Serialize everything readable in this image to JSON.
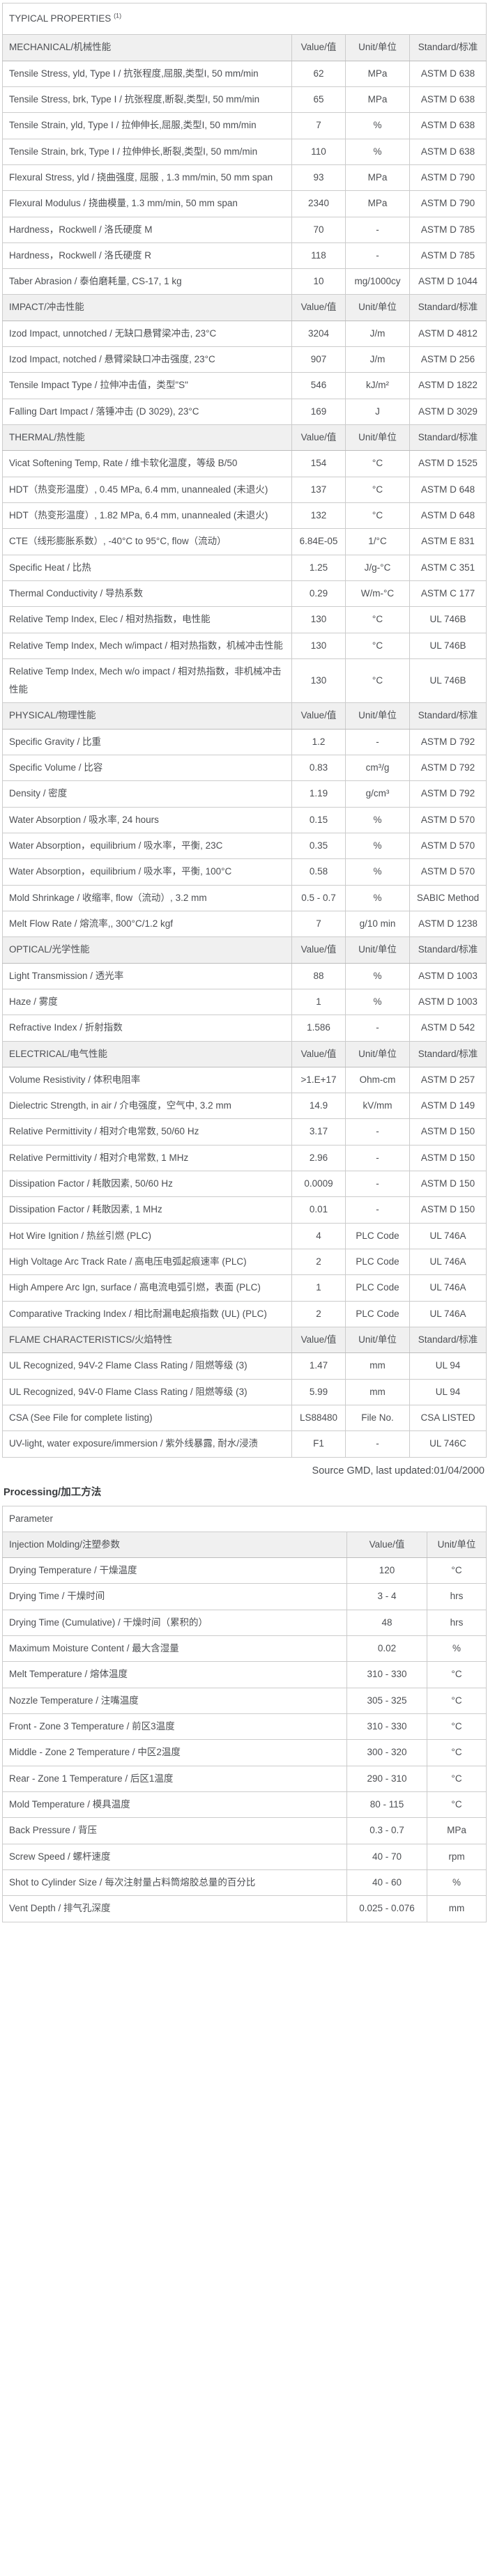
{
  "page": {
    "title": "TYPICAL PROPERTIES",
    "title_sup": "(1)",
    "source_note": "Source GMD, last updated:01/04/2000",
    "processing_heading": "Processing/加工方法"
  },
  "column_labels": {
    "value": "Value/值",
    "unit": "Unit/单位",
    "standard": "Standard/标准"
  },
  "properties_table": {
    "sections": [
      {
        "name": "MECHANICAL/机械性能",
        "rows": [
          {
            "property": "Tensile Stress, yld, Type I / 抗张程度,屈服,类型I, 50 mm/min",
            "value": "62",
            "unit": "MPa",
            "standard": "ASTM D 638"
          },
          {
            "property": "Tensile Stress, brk, Type I / 抗张程度,断裂,类型I, 50 mm/min",
            "value": "65",
            "unit": "MPa",
            "standard": "ASTM D 638"
          },
          {
            "property": "Tensile Strain, yld, Type I / 拉伸伸长,屈服,类型I, 50 mm/min",
            "value": "7",
            "unit": "%",
            "standard": "ASTM D 638"
          },
          {
            "property": "Tensile Strain, brk, Type I / 拉伸伸长,断裂,类型I, 50 mm/min",
            "value": "110",
            "unit": "%",
            "standard": "ASTM D 638"
          },
          {
            "property": "Flexural Stress, yld / 挠曲强度, 屈服 , 1.3 mm/min, 50 mm span",
            "value": "93",
            "unit": "MPa",
            "standard": "ASTM D 790"
          },
          {
            "property": "Flexural Modulus / 挠曲模量, 1.3 mm/min, 50 mm span",
            "value": "2340",
            "unit": "MPa",
            "standard": "ASTM D 790"
          },
          {
            "property": "Hardness，Rockwell / 洛氏硬度 M",
            "value": "70",
            "unit": "-",
            "standard": "ASTM D 785"
          },
          {
            "property": "Hardness，Rockwell / 洛氏硬度 R",
            "value": "118",
            "unit": "-",
            "standard": "ASTM D 785"
          },
          {
            "property": "Taber Abrasion / 泰伯磨耗量, CS-17, 1 kg",
            "value": "10",
            "unit": "mg/1000cy",
            "standard": "ASTM D 1044"
          }
        ]
      },
      {
        "name": "IMPACT/冲击性能",
        "rows": [
          {
            "property": "Izod Impact, unnotched / 无缺口悬臂梁冲击, 23°C",
            "value": "3204",
            "unit": "J/m",
            "standard": "ASTM D 4812"
          },
          {
            "property": "Izod Impact, notched / 悬臂梁缺口冲击强度, 23°C",
            "value": "907",
            "unit": "J/m",
            "standard": "ASTM D 256"
          },
          {
            "property": "Tensile Impact Type / 拉伸冲击值，类型\"S\"",
            "value": "546",
            "unit": "kJ/m²",
            "standard": "ASTM D 1822"
          },
          {
            "property": "Falling Dart Impact / 落锤冲击 (D 3029), 23°C",
            "value": "169",
            "unit": "J",
            "standard": "ASTM D 3029"
          }
        ]
      },
      {
        "name": "THERMAL/热性能",
        "rows": [
          {
            "property": "Vicat Softening Temp, Rate / 维卡软化温度，等级 B/50",
            "value": "154",
            "unit": "°C",
            "standard": "ASTM D 1525"
          },
          {
            "property": "HDT（热变形温度）, 0.45 MPa, 6.4 mm, unannealed (未退火)",
            "value": "137",
            "unit": "°C",
            "standard": "ASTM D 648"
          },
          {
            "property": "HDT（热变形温度）, 1.82 MPa, 6.4 mm, unannealed (未退火)",
            "value": "132",
            "unit": "°C",
            "standard": "ASTM D 648"
          },
          {
            "property": "CTE（线形膨胀系数）, -40°C to 95°C, flow（流动）",
            "value": "6.84E-05",
            "unit": "1/°C",
            "standard": "ASTM E 831"
          },
          {
            "property": "Specific Heat / 比热",
            "value": "1.25",
            "unit": "J/g-°C",
            "standard": "ASTM C 351"
          },
          {
            "property": "Thermal Conductivity / 导热系数",
            "value": "0.29",
            "unit": "W/m-°C",
            "standard": "ASTM C 177"
          },
          {
            "property": "Relative Temp Index, Elec / 相对热指数，电性能",
            "value": "130",
            "unit": "°C",
            "standard": "UL 746B"
          },
          {
            "property": "Relative Temp Index, Mech w/impact / 相对热指数，机械冲击性能",
            "value": "130",
            "unit": "°C",
            "standard": "UL 746B"
          },
          {
            "property": "Relative Temp Index, Mech w/o impact / 相对热指数，非机械冲击性能",
            "value": "130",
            "unit": "°C",
            "standard": "UL 746B"
          }
        ]
      },
      {
        "name": "PHYSICAL/物理性能",
        "rows": [
          {
            "property": "Specific Gravity / 比重",
            "value": "1.2",
            "unit": "-",
            "standard": "ASTM D 792"
          },
          {
            "property": "Specific Volume / 比容",
            "value": "0.83",
            "unit": "cm³/g",
            "standard": "ASTM D 792"
          },
          {
            "property": "Density / 密度",
            "value": "1.19",
            "unit": "g/cm³",
            "standard": "ASTM D 792"
          },
          {
            "property": "Water Absorption / 吸水率, 24 hours",
            "value": "0.15",
            "unit": "%",
            "standard": "ASTM D 570"
          },
          {
            "property": "Water Absorption，equilibrium / 吸水率，平衡, 23C",
            "value": "0.35",
            "unit": "%",
            "standard": "ASTM D 570"
          },
          {
            "property": "Water Absorption，equilibrium / 吸水率，平衡, 100°C",
            "value": "0.58",
            "unit": "%",
            "standard": "ASTM D 570"
          },
          {
            "property": "Mold Shrinkage / 收缩率, flow（流动）, 3.2 mm",
            "value": "0.5 - 0.7",
            "unit": "%",
            "standard": "SABIC Method"
          },
          {
            "property": "Melt Flow Rate / 熔流率,, 300°C/1.2 kgf",
            "value": "7",
            "unit": "g/10 min",
            "standard": "ASTM D 1238"
          }
        ]
      },
      {
        "name": "OPTICAL/光学性能",
        "rows": [
          {
            "property": "Light Transmission / 透光率",
            "value": "88",
            "unit": "%",
            "standard": "ASTM D 1003"
          },
          {
            "property": "Haze / 雾度",
            "value": "1",
            "unit": "%",
            "standard": "ASTM D 1003"
          },
          {
            "property": "Refractive Index / 折射指数",
            "value": "1.586",
            "unit": "-",
            "standard": "ASTM D 542"
          }
        ]
      },
      {
        "name": "ELECTRICAL/电气性能",
        "rows": [
          {
            "property": "Volume Resistivity / 体积电阻率",
            "value": ">1.E+17",
            "unit": "Ohm-cm",
            "standard": "ASTM D 257"
          },
          {
            "property": "Dielectric Strength, in air / 介电强度，空气中, 3.2 mm",
            "value": "14.9",
            "unit": "kV/mm",
            "standard": "ASTM D 149"
          },
          {
            "property": "Relative Permittivity / 相对介电常数, 50/60 Hz",
            "value": "3.17",
            "unit": "-",
            "standard": "ASTM D 150"
          },
          {
            "property": "Relative Permittivity / 相对介电常数, 1 MHz",
            "value": "2.96",
            "unit": "-",
            "standard": "ASTM D 150"
          },
          {
            "property": "Dissipation Factor / 耗散因素, 50/60 Hz",
            "value": "0.0009",
            "unit": "-",
            "standard": "ASTM D 150"
          },
          {
            "property": "Dissipation Factor / 耗散因素, 1 MHz",
            "value": "0.01",
            "unit": "-",
            "standard": "ASTM D 150"
          },
          {
            "property": "Hot Wire Ignition / 热丝引燃 (PLC)",
            "value": "4",
            "unit": "PLC Code",
            "standard": "UL 746A"
          },
          {
            "property": "High Voltage Arc Track Rate / 高电压电弧起痕速率 (PLC)",
            "value": "2",
            "unit": "PLC Code",
            "standard": "UL 746A"
          },
          {
            "property": "High Ampere Arc Ign, surface / 高电流电弧引燃，表面 (PLC)",
            "value": "1",
            "unit": "PLC Code",
            "standard": "UL 746A"
          },
          {
            "property": "Comparative Tracking Index / 相比耐漏电起痕指数 (UL) (PLC)",
            "value": "2",
            "unit": "PLC Code",
            "standard": "UL 746A"
          }
        ]
      },
      {
        "name": "FLAME CHARACTERISTICS/火焰特性",
        "rows": [
          {
            "property": "UL Recognized, 94V-2 Flame Class Rating / 阻燃等级 (3)",
            "value": "1.47",
            "unit": "mm",
            "standard": "UL 94"
          },
          {
            "property": "UL Recognized, 94V-0 Flame Class Rating / 阻燃等级 (3)",
            "value": "5.99",
            "unit": "mm",
            "standard": "UL 94"
          },
          {
            "property": "CSA (See File for complete listing)",
            "value": "LS88480",
            "unit": "File No.",
            "standard": "CSA LISTED"
          },
          {
            "property": "UV-light, water exposure/immersion / 紫外线暴露, 耐水/浸渍",
            "value": "F1",
            "unit": "-",
            "standard": "UL 746C"
          }
        ]
      }
    ]
  },
  "processing_table": {
    "header": "Parameter",
    "section": "Injection Molding/注塑参数",
    "value_label": "Value/值",
    "unit_label": "Unit/单位",
    "rows": [
      {
        "parameter": "Drying Temperature / 干燥温度",
        "value": "120",
        "unit": "°C"
      },
      {
        "parameter": "Drying Time / 干燥时间",
        "value": "3 - 4",
        "unit": "hrs"
      },
      {
        "parameter": "Drying Time (Cumulative) / 干燥时间（累积的）",
        "value": "48",
        "unit": "hrs"
      },
      {
        "parameter": "Maximum Moisture Content / 最大含湿量",
        "value": "0.02",
        "unit": "%"
      },
      {
        "parameter": "Melt Temperature / 熔体温度",
        "value": "310 - 330",
        "unit": "°C"
      },
      {
        "parameter": "Nozzle Temperature / 注嘴温度",
        "value": "305 - 325",
        "unit": "°C"
      },
      {
        "parameter": "Front - Zone 3 Temperature / 前区3温度",
        "value": "310 - 330",
        "unit": "°C"
      },
      {
        "parameter": "Middle - Zone 2 Temperature / 中区2温度",
        "value": "300 - 320",
        "unit": "°C"
      },
      {
        "parameter": "Rear - Zone 1 Temperature / 后区1温度",
        "value": "290 - 310",
        "unit": "°C"
      },
      {
        "parameter": "Mold Temperature / 模具温度",
        "value": "80 - 115",
        "unit": "°C"
      },
      {
        "parameter": "Back Pressure / 背压",
        "value": "0.3 - 0.7",
        "unit": "MPa"
      },
      {
        "parameter": "Screw Speed / 螺杆速度",
        "value": "40 - 70",
        "unit": "rpm"
      },
      {
        "parameter": "Shot to Cylinder Size / 每次注射量占料筒熔胶总量的百分比",
        "value": "40 - 60",
        "unit": "%"
      },
      {
        "parameter": "Vent Depth / 排气孔深度",
        "value": "0.025 - 0.076",
        "unit": "mm"
      }
    ]
  },
  "colors": {
    "text": "#4d4f53",
    "section_background": "#f0f0f0",
    "border": "#cccccc",
    "page_background": "#ffffff"
  }
}
